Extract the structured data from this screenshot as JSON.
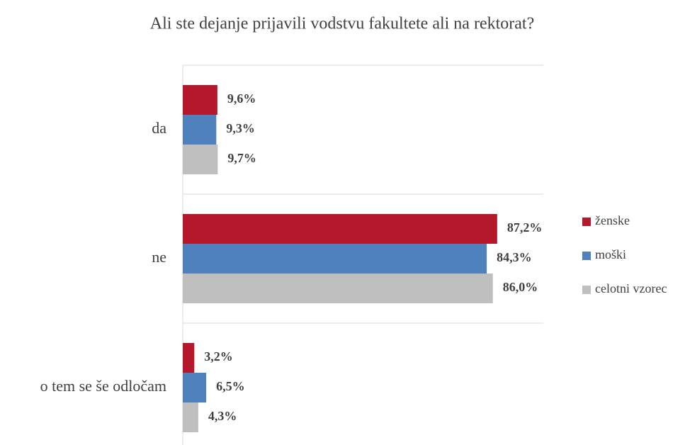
{
  "chart_data": {
    "type": "bar",
    "orientation": "horizontal",
    "title": "Ali ste dejanje prijavili vodstvu fakultete ali na rektorat?",
    "categories": [
      "da",
      "ne",
      "o tem se še odločam"
    ],
    "series": [
      {
        "name": "ženske",
        "color": "#b5172b",
        "values": [
          9.6,
          87.2,
          3.2
        ],
        "value_labels": [
          "9,6%",
          "87,2%",
          "3,2%"
        ]
      },
      {
        "name": "moški",
        "color": "#4f81bd",
        "values": [
          9.3,
          84.3,
          6.5
        ],
        "value_labels": [
          "9,3%",
          "84,3%",
          "6,5%"
        ]
      },
      {
        "name": "celotni vzorec",
        "color": "#bfbfbf",
        "values": [
          9.7,
          86.0,
          4.3
        ],
        "value_labels": [
          "9,7%",
          "86,0%",
          "4,3%"
        ]
      }
    ],
    "xlim": [
      0,
      100
    ],
    "legend": "right"
  }
}
